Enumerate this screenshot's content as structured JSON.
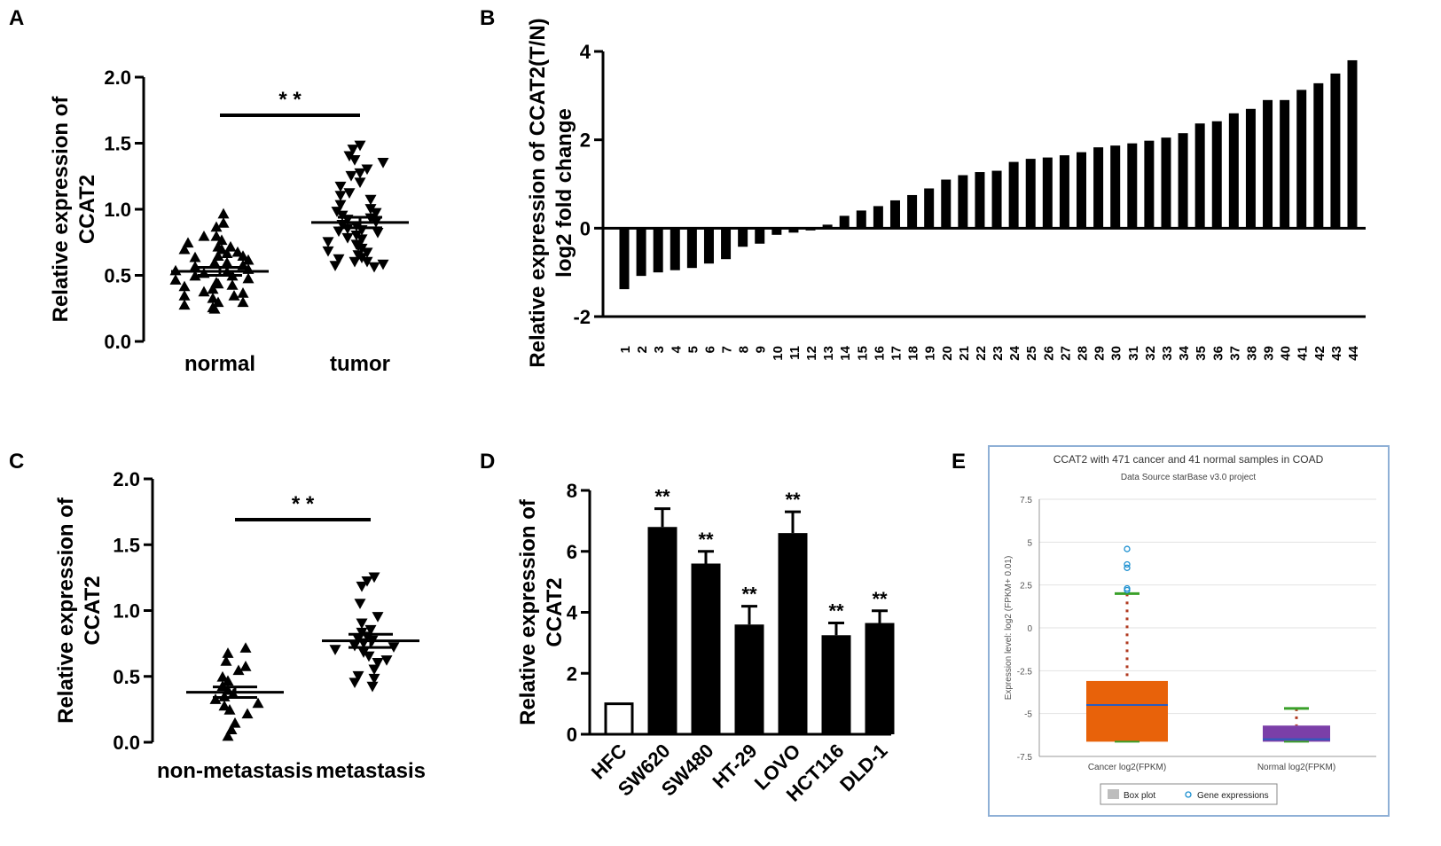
{
  "chart_data": [
    {
      "panel": "A",
      "type": "scatter",
      "ylabel_lines": [
        "Relative expression of",
        "CCAT2"
      ],
      "ylim": [
        0,
        2.0
      ],
      "yticks": [
        0.0,
        0.5,
        1.0,
        1.5,
        2.0
      ],
      "ytick_labels": [
        "0.0",
        "0.5",
        "1.0",
        "1.5",
        "2.0"
      ],
      "categories": [
        "normal",
        "tumor"
      ],
      "markers": [
        "triangle-up",
        "triangle-down"
      ],
      "series": [
        {
          "name": "normal",
          "mean": 0.53,
          "sem": 0.03,
          "values": [
            0.97,
            0.9,
            0.87,
            0.8,
            0.8,
            0.77,
            0.75,
            0.72,
            0.72,
            0.7,
            0.7,
            0.68,
            0.67,
            0.65,
            0.65,
            0.64,
            0.62,
            0.6,
            0.6,
            0.58,
            0.57,
            0.55,
            0.54,
            0.53,
            0.52,
            0.5,
            0.5,
            0.48,
            0.47,
            0.45,
            0.44,
            0.43,
            0.42,
            0.4,
            0.38,
            0.37,
            0.35,
            0.35,
            0.33,
            0.3,
            0.3,
            0.28,
            0.26,
            0.25
          ]
        },
        {
          "name": "tumor",
          "mean": 0.9,
          "sem": 0.04,
          "values": [
            1.48,
            1.45,
            1.4,
            1.37,
            1.35,
            1.3,
            1.27,
            1.25,
            1.2,
            1.17,
            1.12,
            1.1,
            1.07,
            1.03,
            1.0,
            0.98,
            0.97,
            0.95,
            0.93,
            0.92,
            0.9,
            0.88,
            0.87,
            0.85,
            0.84,
            0.83,
            0.82,
            0.8,
            0.78,
            0.77,
            0.75,
            0.73,
            0.72,
            0.7,
            0.68,
            0.67,
            0.65,
            0.63,
            0.62,
            0.6,
            0.6,
            0.58,
            0.57,
            0.56
          ]
        }
      ],
      "significance": "* *"
    },
    {
      "panel": "B",
      "type": "bar",
      "ylabel_lines": [
        "Relative expression of CCAT2(T/N)",
        "log2 fold change"
      ],
      "ylim": [
        -2,
        4
      ],
      "yticks": [
        -2,
        0,
        2,
        4
      ],
      "ytick_labels": [
        "-2",
        "0",
        "2",
        "4"
      ],
      "categories": [
        "1",
        "2",
        "3",
        "4",
        "5",
        "6",
        "7",
        "8",
        "9",
        "10",
        "11",
        "12",
        "13",
        "14",
        "15",
        "16",
        "17",
        "18",
        "19",
        "20",
        "21",
        "22",
        "23",
        "24",
        "25",
        "26",
        "27",
        "28",
        "29",
        "30",
        "31",
        "32",
        "33",
        "34",
        "35",
        "36",
        "37",
        "38",
        "39",
        "40",
        "41",
        "42",
        "43",
        "44"
      ],
      "values": [
        -1.38,
        -1.08,
        -1.0,
        -0.95,
        -0.9,
        -0.8,
        -0.7,
        -0.42,
        -0.35,
        -0.15,
        -0.1,
        -0.05,
        0.08,
        0.28,
        0.4,
        0.5,
        0.63,
        0.75,
        0.9,
        1.1,
        1.2,
        1.27,
        1.3,
        1.5,
        1.57,
        1.6,
        1.65,
        1.72,
        1.83,
        1.87,
        1.92,
        1.98,
        2.05,
        2.15,
        2.37,
        2.42,
        2.6,
        2.7,
        2.9,
        2.9,
        3.13,
        3.28,
        3.5,
        3.8
      ]
    },
    {
      "panel": "C",
      "type": "scatter",
      "ylabel_lines": [
        "Relative expression of",
        "CCAT2"
      ],
      "ylim": [
        0,
        2.0
      ],
      "yticks": [
        0.0,
        0.5,
        1.0,
        1.5,
        2.0
      ],
      "ytick_labels": [
        "0.0",
        "0.5",
        "1.0",
        "1.5",
        "2.0"
      ],
      "categories": [
        "non-metastasis",
        "metastasis"
      ],
      "markers": [
        "triangle-up",
        "triangle-down"
      ],
      "series": [
        {
          "name": "non-metastasis",
          "mean": 0.38,
          "sem": 0.04,
          "values": [
            0.72,
            0.68,
            0.62,
            0.58,
            0.55,
            0.5,
            0.47,
            0.43,
            0.4,
            0.37,
            0.35,
            0.33,
            0.3,
            0.28,
            0.25,
            0.22,
            0.15,
            0.1,
            0.05
          ]
        },
        {
          "name": "metastasis",
          "mean": 0.77,
          "sem": 0.05,
          "values": [
            1.25,
            1.22,
            1.18,
            1.05,
            0.95,
            0.9,
            0.85,
            0.83,
            0.8,
            0.78,
            0.77,
            0.75,
            0.73,
            0.72,
            0.7,
            0.68,
            0.65,
            0.62,
            0.6,
            0.55,
            0.5,
            0.48,
            0.45,
            0.42
          ]
        }
      ],
      "significance": "* *"
    },
    {
      "panel": "D",
      "type": "bar",
      "ylabel_lines": [
        "Relative expression of",
        "CCAT2"
      ],
      "ylim": [
        0,
        8
      ],
      "yticks": [
        0,
        2,
        4,
        6,
        8
      ],
      "ytick_labels": [
        "0",
        "2",
        "4",
        "6",
        "8"
      ],
      "categories": [
        "HFC",
        "SW620",
        "SW480",
        "HT-29",
        "LOVO",
        "HCT116",
        "DLD-1"
      ],
      "values": [
        1.0,
        6.8,
        5.6,
        3.6,
        6.6,
        3.25,
        3.65
      ],
      "errors": [
        0.0,
        0.6,
        0.4,
        0.6,
        0.7,
        0.4,
        0.4
      ],
      "filled": [
        false,
        true,
        true,
        true,
        true,
        true,
        true
      ],
      "annotations": [
        "",
        "**",
        "**",
        "**",
        "**",
        "**",
        "**"
      ]
    },
    {
      "panel": "E",
      "type": "box",
      "title": "CCAT2 with 471 cancer and 41 normal samples in COAD",
      "subtitle": "Data Source  starBase v3.0 project",
      "ylabel": "Expression level: log2 (FPKM+ 0.01)",
      "ylim": [
        -7.5,
        7.5
      ],
      "yticks": [
        -7.5,
        -5,
        -2.5,
        0,
        2.5,
        5,
        7.5
      ],
      "ytick_labels": [
        "-7.5",
        "-5",
        "-2.5",
        "0",
        "2.5",
        "5",
        "7.5"
      ],
      "categories": [
        "Cancer log2(FPKM)",
        "Normal log2(FPKM)"
      ],
      "boxes": [
        {
          "name": "Cancer log2(FPKM)",
          "min": -6.64,
          "q1": -6.64,
          "median": -4.5,
          "q3": -3.1,
          "max": 2.0,
          "outliers": [
            2.2,
            2.3,
            3.5,
            3.7,
            4.6
          ],
          "color": "#e8620a"
        },
        {
          "name": "Normal log2(FPKM)",
          "min": -6.64,
          "q1": -6.64,
          "median": -6.5,
          "q3": -5.7,
          "max": -4.7,
          "outliers": [],
          "color": "#7b3fa8"
        }
      ],
      "legend": [
        "Box plot",
        "Gene expressions"
      ]
    }
  ],
  "panel_labels": [
    "A",
    "B",
    "C",
    "D",
    "E"
  ]
}
